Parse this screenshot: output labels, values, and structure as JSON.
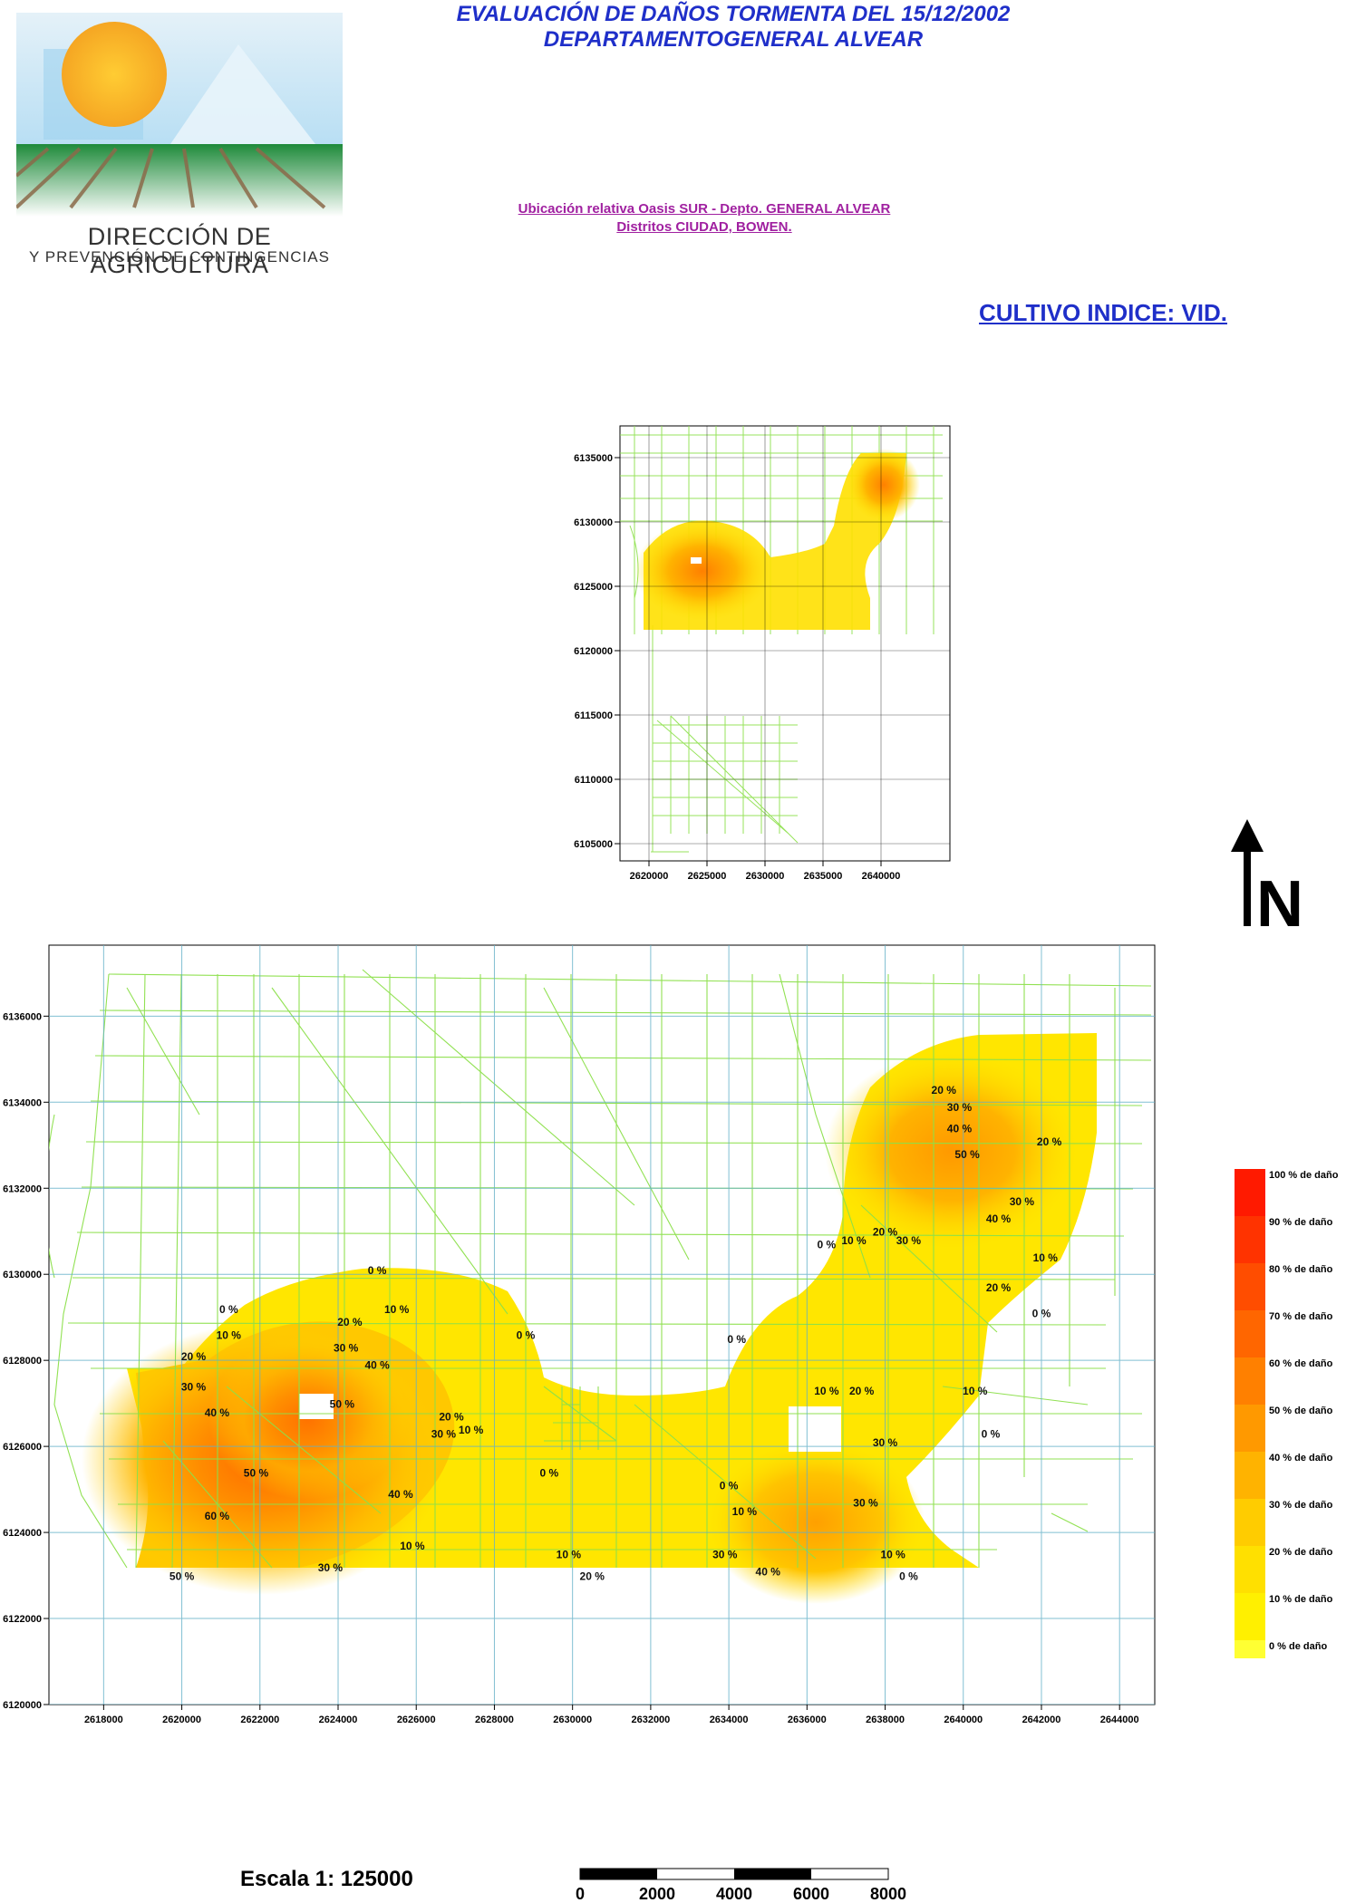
{
  "header": {
    "title_line1": "EVALUACIÓN DE DAÑOS TORMENTA DEL 15/12/2002",
    "title_line2": "DEPARTAMENTOGENERAL ALVEAR",
    "subtitle_line1": "Ubicación relativa Oasis SUR - Depto. GENERAL ALVEAR",
    "subtitle_line2": "Distritos  CIUDAD, BOWEN.",
    "crop_index": "CULTIVO INDICE: VID."
  },
  "logo": {
    "line1": "DIRECCIÓN DE AGRICULTURA",
    "line2": "Y PREVENCIÓN DE CONTINGENCIAS"
  },
  "north_arrow": {
    "letter": "N"
  },
  "inset_map": {
    "y_ticks": [
      "6135000",
      "6130000",
      "6125000",
      "6120000",
      "6115000",
      "6110000",
      "6105000"
    ],
    "x_ticks": [
      "2620000",
      "2625000",
      "2630000",
      "2635000",
      "2640000"
    ]
  },
  "main_map": {
    "y_ticks": [
      "6136000",
      "6134000",
      "6132000",
      "6130000",
      "6128000",
      "6126000",
      "6124000",
      "6122000",
      "6120000"
    ],
    "x_ticks": [
      "2618000",
      "2620000",
      "2622000",
      "2624000",
      "2626000",
      "2628000",
      "2630000",
      "2632000",
      "2634000",
      "2636000",
      "2638000",
      "2640000",
      "2642000",
      "2644000"
    ],
    "contour_labels": [
      {
        "text": "20 %",
        "x": 2639.5,
        "y": 6134.2
      },
      {
        "text": "30 %",
        "x": 2639.9,
        "y": 6133.8
      },
      {
        "text": "40 %",
        "x": 2639.9,
        "y": 6133.3
      },
      {
        "text": "50 %",
        "x": 2640.1,
        "y": 6132.7
      },
      {
        "text": "20 %",
        "x": 2642.2,
        "y": 6133.0
      },
      {
        "text": "30 %",
        "x": 2641.5,
        "y": 6131.6
      },
      {
        "text": "40 %",
        "x": 2640.9,
        "y": 6131.2
      },
      {
        "text": "0 %",
        "x": 2636.5,
        "y": 6130.6
      },
      {
        "text": "10 %",
        "x": 2637.2,
        "y": 6130.7
      },
      {
        "text": "20 %",
        "x": 2638.0,
        "y": 6130.9
      },
      {
        "text": "30 %",
        "x": 2638.6,
        "y": 6130.7
      },
      {
        "text": "20 %",
        "x": 2640.9,
        "y": 6129.6
      },
      {
        "text": "10 %",
        "x": 2642.1,
        "y": 6130.3
      },
      {
        "text": "0 %",
        "x": 2642.0,
        "y": 6129.0
      },
      {
        "text": "0 %",
        "x": 2625.0,
        "y": 6130.0
      },
      {
        "text": "10 %",
        "x": 2625.5,
        "y": 6129.1
      },
      {
        "text": "0 %",
        "x": 2621.2,
        "y": 6129.1
      },
      {
        "text": "10 %",
        "x": 2621.2,
        "y": 6128.5
      },
      {
        "text": "20 %",
        "x": 2624.3,
        "y": 6128.8
      },
      {
        "text": "30 %",
        "x": 2624.2,
        "y": 6128.2
      },
      {
        "text": "40 %",
        "x": 2625.0,
        "y": 6127.8
      },
      {
        "text": "20 %",
        "x": 2620.3,
        "y": 6128.0
      },
      {
        "text": "30 %",
        "x": 2620.3,
        "y": 6127.3
      },
      {
        "text": "40 %",
        "x": 2620.9,
        "y": 6126.7
      },
      {
        "text": "50 %",
        "x": 2624.1,
        "y": 6126.9
      },
      {
        "text": "50 %",
        "x": 2621.9,
        "y": 6125.3
      },
      {
        "text": "40 %",
        "x": 2625.6,
        "y": 6124.8
      },
      {
        "text": "60 %",
        "x": 2620.9,
        "y": 6124.3
      },
      {
        "text": "20 %",
        "x": 2626.9,
        "y": 6126.6
      },
      {
        "text": "10 %",
        "x": 2627.4,
        "y": 6126.3
      },
      {
        "text": "30 %",
        "x": 2626.7,
        "y": 6126.2
      },
      {
        "text": "0 %",
        "x": 2628.8,
        "y": 6128.5
      },
      {
        "text": "0 %",
        "x": 2629.4,
        "y": 6125.3
      },
      {
        "text": "10 %",
        "x": 2625.9,
        "y": 6123.6
      },
      {
        "text": "30 %",
        "x": 2623.8,
        "y": 6123.1
      },
      {
        "text": "50 %",
        "x": 2620.0,
        "y": 6122.9
      },
      {
        "text": "10 %",
        "x": 2629.9,
        "y": 6123.4
      },
      {
        "text": "20 %",
        "x": 2630.5,
        "y": 6122.9
      },
      {
        "text": "0 %",
        "x": 2634.2,
        "y": 6128.4
      },
      {
        "text": "0 %",
        "x": 2634.0,
        "y": 6125.0
      },
      {
        "text": "10 %",
        "x": 2634.4,
        "y": 6124.4
      },
      {
        "text": "30 %",
        "x": 2633.9,
        "y": 6123.4
      },
      {
        "text": "40 %",
        "x": 2635.0,
        "y": 6123.0
      },
      {
        "text": "10 %",
        "x": 2636.5,
        "y": 6127.2
      },
      {
        "text": "20 %",
        "x": 2637.4,
        "y": 6127.2
      },
      {
        "text": "30 %",
        "x": 2638.0,
        "y": 6126.0
      },
      {
        "text": "30 %",
        "x": 2637.5,
        "y": 6124.6
      },
      {
        "text": "10 %",
        "x": 2638.2,
        "y": 6123.4
      },
      {
        "text": "0 %",
        "x": 2638.6,
        "y": 6122.9
      },
      {
        "text": "10 %",
        "x": 2640.3,
        "y": 6127.2
      },
      {
        "text": "0 %",
        "x": 2640.7,
        "y": 6126.2
      }
    ]
  },
  "legend": {
    "items": [
      {
        "label": "100 % de daño",
        "color": "#ff1a00"
      },
      {
        "label": "90 % de daño",
        "color": "#ff3300"
      },
      {
        "label": "80 % de daño",
        "color": "#ff4d00"
      },
      {
        "label": "70 % de daño",
        "color": "#ff6600"
      },
      {
        "label": "60 % de daño",
        "color": "#ff8000"
      },
      {
        "label": "50 % de daño",
        "color": "#ff9900"
      },
      {
        "label": "40 % de daño",
        "color": "#ffb300"
      },
      {
        "label": "30 % de daño",
        "color": "#ffcc00"
      },
      {
        "label": "20 % de daño",
        "color": "#ffe000"
      },
      {
        "label": "10 % de daño",
        "color": "#fff000"
      },
      {
        "label": "0 % de daño",
        "color": "#ffff33"
      }
    ]
  },
  "scale": {
    "label": "Escala 1: 125000",
    "ticks": [
      "0",
      "2000",
      "4000",
      "6000",
      "8000"
    ]
  },
  "colors": {
    "title": "#1f2fc9",
    "subtitle": "#a020a0",
    "roads": "#8ce04a",
    "grid": "#62b0c8"
  }
}
